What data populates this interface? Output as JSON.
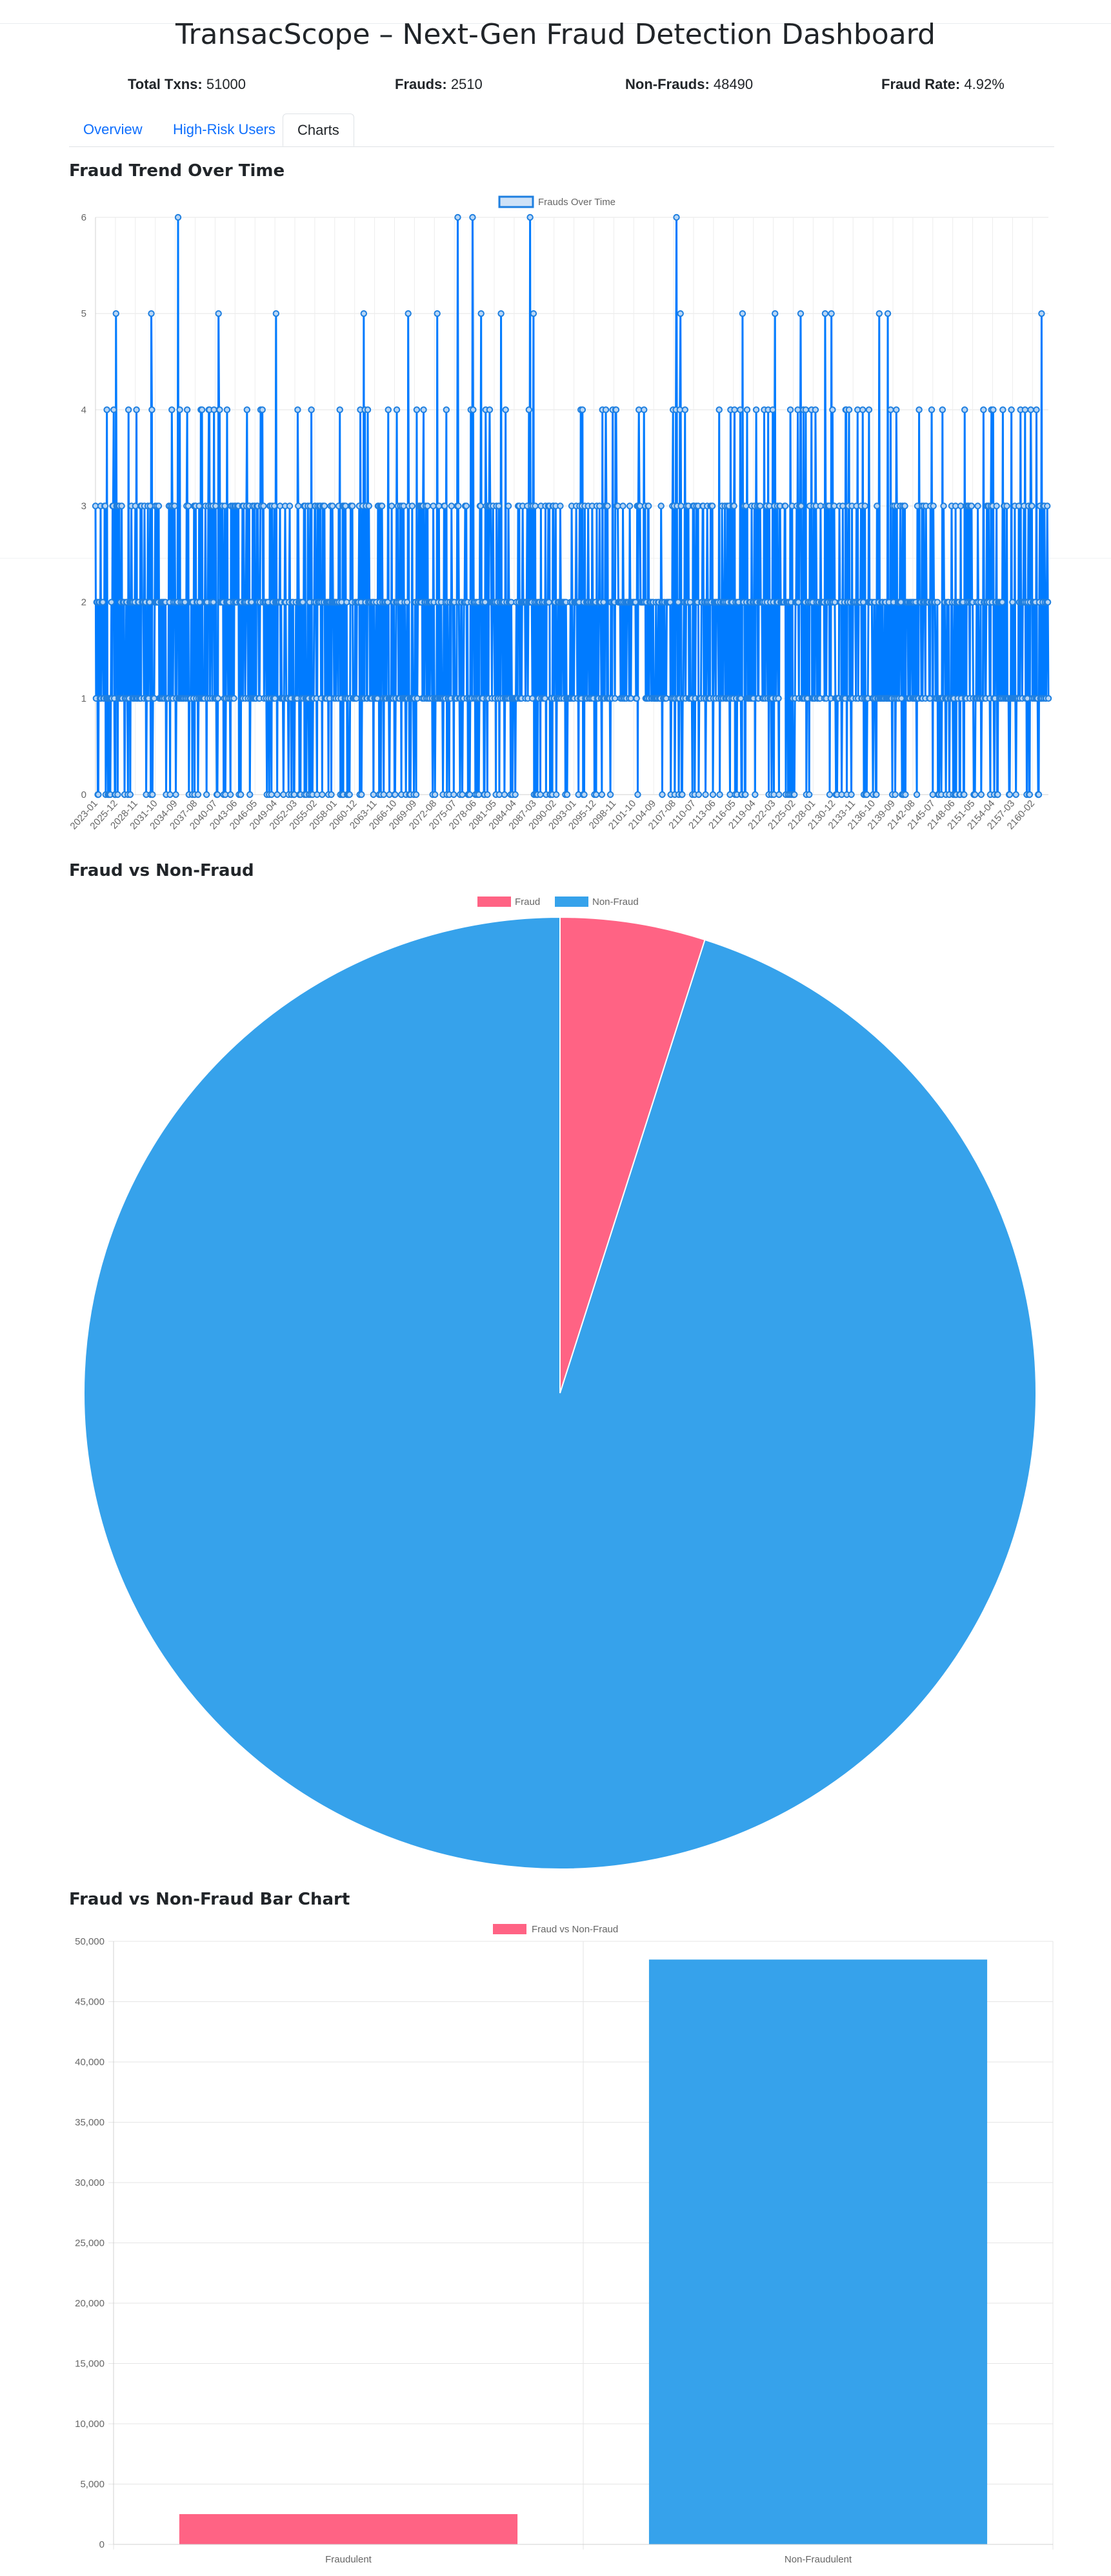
{
  "header": {
    "title": "TransacScope – Next-Gen Fraud Detection Dashboard"
  },
  "stats": {
    "total_label": "Total Txns:",
    "total_value": "51000",
    "frauds_label": "Frauds:",
    "frauds_value": "2510",
    "nonfrauds_label": "Non-Frauds:",
    "nonfrauds_value": "48490",
    "rate_label": "Fraud Rate:",
    "rate_value": "4.92%"
  },
  "tabs": [
    {
      "label": "Overview",
      "active": false
    },
    {
      "label": "High-Risk Users",
      "active": false
    },
    {
      "label": "Charts",
      "active": true
    }
  ],
  "sections": {
    "trend_title": "Fraud Trend Over Time",
    "pie_title": "Fraud vs Non-Fraud",
    "bar_title": "Fraud vs Non-Fraud Bar Chart"
  },
  "chart_data": [
    {
      "type": "line",
      "legend": [
        "Frauds Over Time"
      ],
      "x_tick_labels": [
        "2023-01",
        "2025-12",
        "2028-11",
        "2031-10",
        "2034-09",
        "2037-08",
        "2040-07",
        "2043-06",
        "2046-05",
        "2049-04",
        "2052-03",
        "2055-02",
        "2058-01",
        "2060-12",
        "2063-11",
        "2066-10",
        "2069-09",
        "2072-08",
        "2075-07",
        "2078-06",
        "2081-05",
        "2084-04",
        "2087-03",
        "2090-02",
        "2093-01",
        "2095-12",
        "2098-11",
        "2101-10",
        "2104-09",
        "2107-08",
        "2110-07",
        "2113-06",
        "2116-05",
        "2119-04",
        "2122-03",
        "2125-02",
        "2128-01",
        "2130-12",
        "2133-11",
        "2136-10",
        "2139-09",
        "2142-08",
        "2145-07",
        "2148-06",
        "2151-05",
        "2154-04",
        "2157-03",
        "2160-02"
      ],
      "x_start": "2023-01",
      "x_end": "2162-06",
      "ylim": [
        0,
        6
      ],
      "y_ticks": [
        "0",
        "1",
        "2",
        "3",
        "4",
        "5",
        "6"
      ],
      "peaks": [
        {
          "x": "2026-01",
          "y": 5
        },
        {
          "x": "2031-03",
          "y": 5
        },
        {
          "x": "2035-02",
          "y": 6
        },
        {
          "x": "2041-01",
          "y": 5
        },
        {
          "x": "2049-06",
          "y": 5
        },
        {
          "x": "2062-04",
          "y": 5
        },
        {
          "x": "2068-10",
          "y": 5
        },
        {
          "x": "2073-01",
          "y": 5
        },
        {
          "x": "2076-01",
          "y": 6
        },
        {
          "x": "2078-03",
          "y": 6
        },
        {
          "x": "2079-06",
          "y": 5
        },
        {
          "x": "2082-05",
          "y": 5
        },
        {
          "x": "2086-08",
          "y": 6
        },
        {
          "x": "2087-02",
          "y": 5
        },
        {
          "x": "2108-01",
          "y": 6
        },
        {
          "x": "2108-08",
          "y": 5
        },
        {
          "x": "2117-09",
          "y": 5
        },
        {
          "x": "2122-06",
          "y": 5
        },
        {
          "x": "2126-03",
          "y": 5
        },
        {
          "x": "2129-10",
          "y": 5
        },
        {
          "x": "2130-09",
          "y": 5
        },
        {
          "x": "2137-09",
          "y": 5
        },
        {
          "x": "2138-12",
          "y": 5
        },
        {
          "x": "2161-06",
          "y": 5
        }
      ],
      "typical_range": [
        0,
        4
      ],
      "color": "#1e7fe0"
    },
    {
      "type": "pie",
      "legend": [
        "Fraud",
        "Non-Fraud"
      ],
      "values": [
        2510,
        48490
      ],
      "colors": [
        "#ff6384",
        "#36a2eb"
      ]
    },
    {
      "type": "bar",
      "legend": [
        "Fraud vs Non-Fraud"
      ],
      "categories": [
        "Fraudulent",
        "Non-Fraudulent"
      ],
      "values": [
        2510,
        48490
      ],
      "colors": [
        "#ff6384",
        "#36a2eb"
      ],
      "ylim": [
        0,
        50000
      ],
      "y_ticks": [
        "0",
        "5,000",
        "10,000",
        "15,000",
        "20,000",
        "25,000",
        "30,000",
        "35,000",
        "40,000",
        "45,000",
        "50,000"
      ]
    }
  ]
}
